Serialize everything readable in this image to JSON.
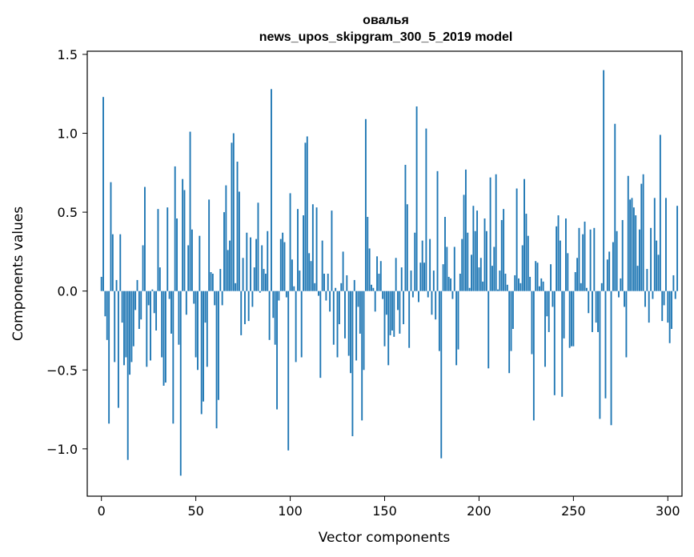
{
  "chart_data": {
    "type": "bar",
    "title": "овалья",
    "subtitle": "news_upos_skipgram_300_5_2019 model",
    "xlabel": "Vector components",
    "ylabel": "Components values",
    "xlim": [
      -7.5,
      307.5
    ],
    "ylim": [
      -1.3,
      1.52
    ],
    "xticks": [
      0,
      50,
      100,
      150,
      200,
      250,
      300
    ],
    "xtick_labels": [
      "0",
      "50",
      "100",
      "150",
      "200",
      "250",
      "300"
    ],
    "yticks": [
      -1.0,
      -0.5,
      0.0,
      0.5,
      1.0,
      1.5
    ],
    "ytick_labels": [
      "−1.0",
      "−0.5",
      "0.0",
      "0.5",
      "1.0",
      "1.5"
    ],
    "bar_color": "#1f77b4",
    "grid": false,
    "values": [
      0.09,
      1.23,
      -0.16,
      -0.31,
      -0.84,
      0.69,
      0.36,
      -0.45,
      0.07,
      -0.74,
      0.36,
      -0.2,
      -0.47,
      -0.42,
      -1.07,
      -0.53,
      -0.45,
      -0.35,
      -0.12,
      0.07,
      -0.24,
      -0.18,
      0.29,
      0.66,
      -0.48,
      -0.09,
      -0.44,
      0.01,
      -0.14,
      -0.25,
      0.52,
      0.15,
      -0.42,
      -0.6,
      -0.58,
      0.53,
      -0.05,
      -0.27,
      -0.84,
      0.79,
      0.46,
      -0.34,
      -1.17,
      0.71,
      0.64,
      -0.15,
      0.29,
      1.01,
      0.39,
      -0.08,
      -0.42,
      -0.5,
      0.35,
      -0.78,
      -0.7,
      -0.2,
      -0.48,
      0.58,
      0.12,
      0.11,
      -0.09,
      -0.87,
      -0.69,
      0.14,
      -0.09,
      0.5,
      0.67,
      0.26,
      0.32,
      0.94,
      1.0,
      0.05,
      0.82,
      0.63,
      -0.28,
      0.21,
      -0.21,
      0.37,
      -0.19,
      0.34,
      -0.1,
      0.15,
      0.33,
      0.56,
      -0.01,
      0.29,
      0.14,
      0.11,
      0.38,
      -0.31,
      1.28,
      -0.17,
      -0.34,
      -0.75,
      -0.06,
      0.33,
      0.37,
      0.31,
      -0.04,
      -1.01,
      0.62,
      0.2,
      0.03,
      -0.45,
      0.52,
      0.13,
      -0.42,
      0.48,
      0.94,
      0.98,
      0.24,
      0.19,
      0.55,
      0.05,
      0.53,
      -0.03,
      -0.55,
      0.32,
      0.11,
      -0.06,
      0.11,
      -0.13,
      0.51,
      -0.34,
      0.02,
      -0.42,
      -0.21,
      0.05,
      0.25,
      -0.3,
      0.1,
      -0.41,
      -0.52,
      -0.92,
      0.07,
      -0.44,
      -0.1,
      -0.27,
      -0.82,
      -0.5,
      1.09,
      0.47,
      0.27,
      0.04,
      0.02,
      -0.13,
      0.22,
      0.11,
      0.19,
      -0.05,
      -0.35,
      -0.15,
      -0.47,
      -0.28,
      -0.25,
      -0.29,
      0.21,
      -0.12,
      -0.27,
      0.15,
      -0.21,
      0.8,
      0.55,
      -0.36,
      0.13,
      -0.04,
      0.37,
      1.17,
      -0.07,
      0.18,
      0.32,
      0.18,
      1.03,
      -0.04,
      0.33,
      -0.15,
      0.13,
      -0.18,
      0.76,
      -0.38,
      -1.06,
      0.17,
      0.47,
      0.28,
      0.09,
      0.08,
      -0.05,
      0.28,
      -0.47,
      -0.37,
      0.11,
      0.33,
      0.61,
      0.77,
      0.37,
      0.02,
      0.23,
      0.54,
      0.38,
      0.51,
      0.15,
      0.21,
      0.06,
      0.46,
      0.38,
      -0.49,
      0.72,
      0.16,
      0.28,
      0.74,
      0.01,
      0.13,
      0.45,
      0.52,
      0.11,
      0.04,
      -0.52,
      -0.38,
      -0.24,
      0.1,
      0.65,
      0.08,
      0.05,
      0.29,
      0.71,
      0.49,
      0.35,
      0.09,
      -0.4,
      -0.82,
      0.19,
      0.18,
      0.03,
      0.08,
      0.06,
      -0.48,
      -0.16,
      -0.26,
      0.17,
      -0.1,
      -0.66,
      0.41,
      0.48,
      0.32,
      -0.67,
      -0.3,
      0.46,
      0.24,
      -0.36,
      -0.35,
      -0.35,
      0.12,
      0.21,
      0.4,
      0.05,
      0.36,
      0.44,
      0.02,
      -0.14,
      0.39,
      -0.26,
      0.4,
      -0.2,
      -0.26,
      -0.81,
      0.05,
      1.4,
      -0.68,
      0.2,
      0.25,
      -0.85,
      0.31,
      1.06,
      0.38,
      -0.04,
      0.08,
      0.45,
      -0.1,
      -0.42,
      0.73,
      0.58,
      0.59,
      0.53,
      0.48,
      0.16,
      0.39,
      0.68,
      0.74,
      -0.1,
      0.14,
      -0.2,
      0.4,
      -0.05,
      0.59,
      0.32,
      0.23,
      0.99,
      -0.19,
      -0.09,
      0.59,
      -0.2,
      -0.33,
      -0.24,
      0.1,
      -0.05,
      0.54
    ]
  }
}
